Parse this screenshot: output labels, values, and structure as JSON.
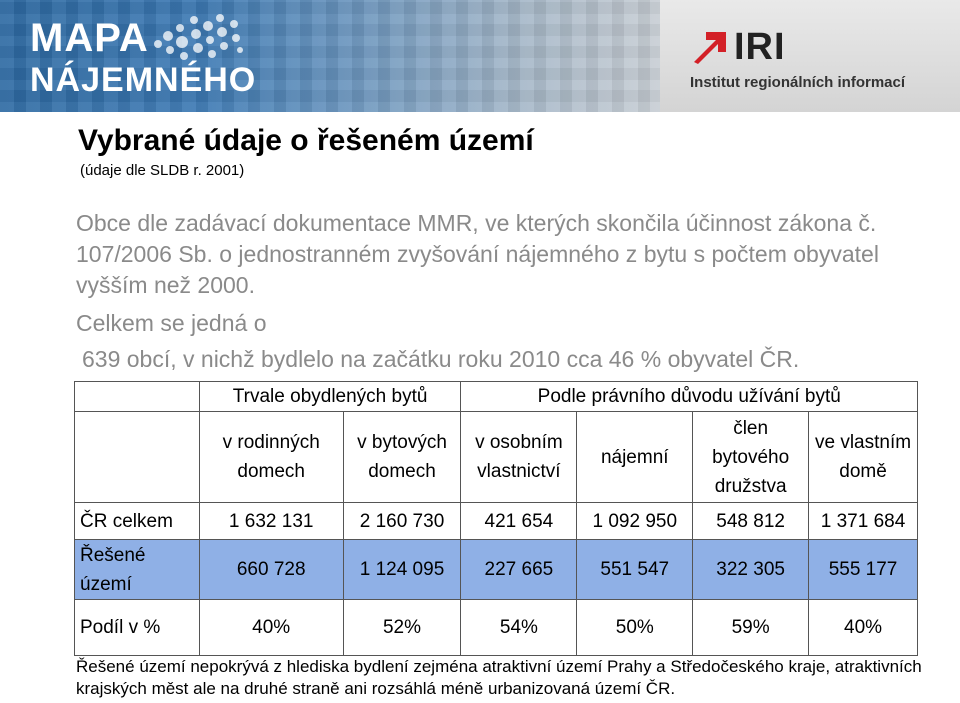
{
  "banner": {
    "logo_line1": "MAPA",
    "logo_line2": "NÁJEMNÉHO",
    "iri_logo": "IRI",
    "iri_subtitle": "Institut regionálních informací"
  },
  "title": "Vybrané údaje o řešeném území",
  "subtitle": "(údaje dle SLDB r. 2001)",
  "paragraph1": "Obce dle zadávací dokumentace MMR, ve kterých skončila účinnost zákona č. 107/2006 Sb. o jednostranném zvyšování nájemného z bytu s počtem obyvatel vyšším než 2000.",
  "paragraph2": "Celkem se jedná o",
  "paragraph3": "639 obcí, v nichž bydlelo na začátku roku 2010 cca 46 % obyvatel ČR.",
  "table": {
    "group1": "Trvale obydlených bytů",
    "group2": "Podle právního důvodu užívání bytů",
    "columns": [
      "v rodinných domech",
      "v bytových domech",
      "v osobním vlastnictví",
      "nájemní",
      "člen bytového družstva",
      "ve vlastním domě"
    ],
    "rows": [
      {
        "label": "ČR celkem",
        "values": [
          "1 632 131",
          "2 160 730",
          "421 654",
          "1 092 950",
          "548 812",
          "1 371 684"
        ]
      },
      {
        "label": "Řešené území",
        "values": [
          "660 728",
          "1 124 095",
          "227 665",
          "551 547",
          "322 305",
          "555 177"
        ]
      },
      {
        "label": "Podíl v %",
        "values": [
          "40%",
          "52%",
          "54%",
          "50%",
          "59%",
          "40%"
        ]
      }
    ]
  },
  "note": "Řešené území nepokrývá z hlediska bydlení zejména atraktivní území Prahy a Středočeského kraje, atraktivních krajských měst ale na druhé straně ani rozsáhlá méně urbanizovaná území ČR.",
  "colors": {
    "highlight_row": "#8fb0e6",
    "grey_text": "#8a8a8a",
    "iri_red": "#d32027"
  }
}
